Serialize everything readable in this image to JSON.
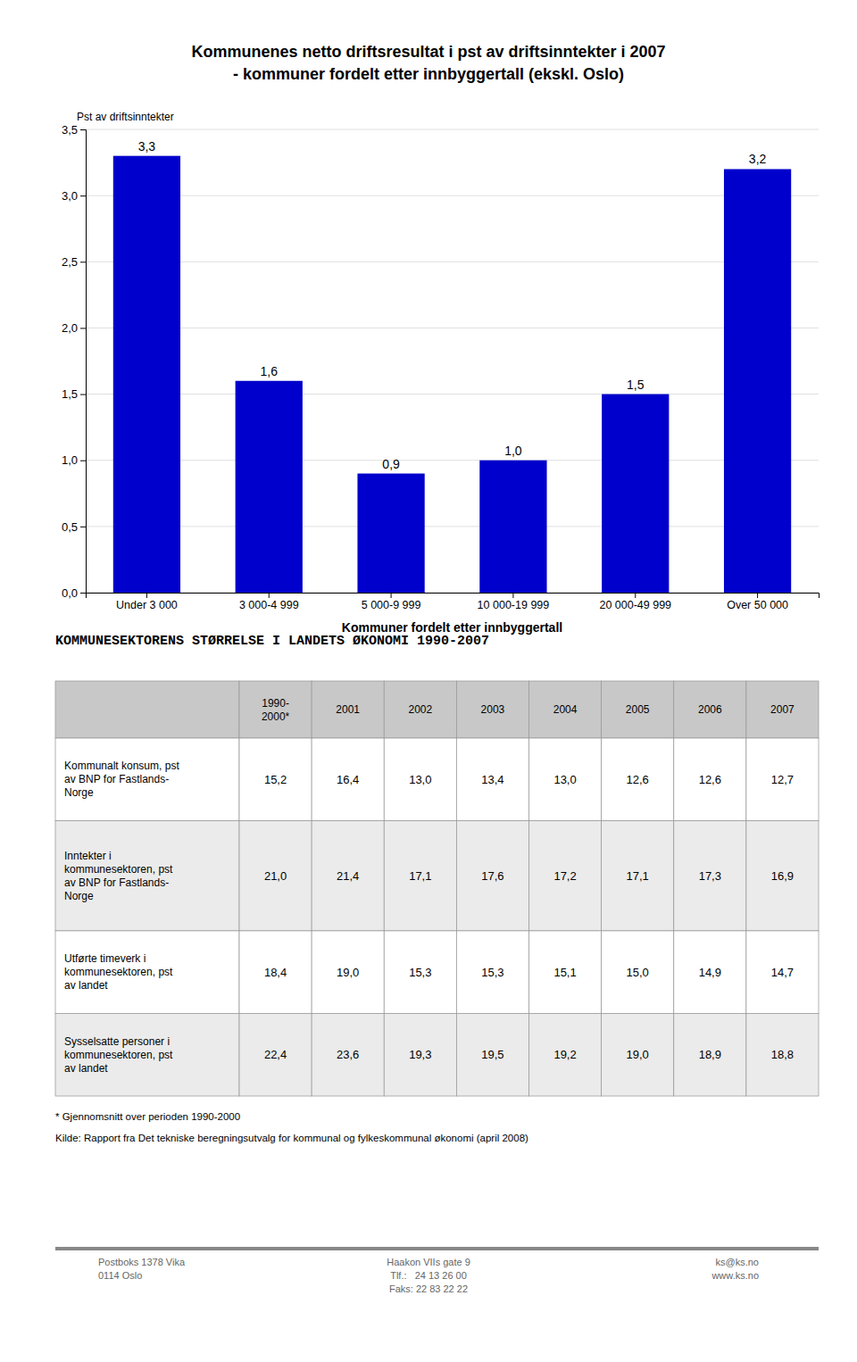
{
  "chart_data": {
    "type": "bar",
    "title": "Kommunenes netto driftsresultat i pst av driftsinntekter i 2007",
    "subtitle": "- kommuner fordelt etter innbyggertall (ekskl. Oslo)",
    "ylabel": "Pst av driftsinntekter",
    "xlabel": "Kommuner fordelt etter innbyggertall",
    "categories": [
      "Under 3 000",
      "3 000-4 999",
      "5 000-9 999",
      "10 000-19 999",
      "20 000-49 999",
      "Over 50 000"
    ],
    "values": [
      3.3,
      1.6,
      0.9,
      1.0,
      1.5,
      3.2
    ],
    "value_labels": [
      "3,3",
      "1,6",
      "0,9",
      "1,0",
      "1,5",
      "3,2"
    ],
    "color": "#0000CC",
    "ylim": [
      0.0,
      3.5
    ],
    "yticks": [
      {
        "value": 0.0,
        "label": "0,0"
      },
      {
        "value": 0.5,
        "label": "0,5"
      },
      {
        "value": 1.0,
        "label": "1,0"
      },
      {
        "value": 1.5,
        "label": "1,5"
      },
      {
        "value": 2.0,
        "label": "2,0"
      },
      {
        "value": 2.5,
        "label": "2,5"
      },
      {
        "value": 3.0,
        "label": "3,0"
      },
      {
        "value": 3.5,
        "label": "3,5"
      }
    ],
    "grid": true,
    "data_labels": true
  },
  "table": {
    "title": "KOMMUNESEKTORENS STØRRELSE I LANDETS ØKONOMI 1990-2007",
    "col_headers": [
      "1990-\n2000*",
      "2001",
      "2002",
      "2003",
      "2004",
      "2005",
      "2006",
      "2007"
    ],
    "row_labels": [
      "Kommunalt konsum, pst\nav BNP for Fastlands-\nNorge",
      "Inntekter i\nkommunesektoren, pst\nav BNP for Fastlands-\nNorge",
      "Utførte timeverk i\nkommunesektoren, pst\nav landet",
      "Sysselsatte personer i\nkommunesektoren, pst\nav landet"
    ],
    "rows": [
      [
        "15,2",
        "16,4",
        "13,0",
        "13,4",
        "13,0",
        "12,6",
        "12,6",
        "12,7"
      ],
      [
        "21,0",
        "21,4",
        "17,1",
        "17,6",
        "17,2",
        "17,1",
        "17,3",
        "16,9"
      ],
      [
        "18,4",
        "19,0",
        "15,3",
        "15,3",
        "15,1",
        "15,0",
        "14,9",
        "14,7"
      ],
      [
        "22,4",
        "23,6",
        "19,3",
        "19,5",
        "19,2",
        "19,0",
        "18,9",
        "18,8"
      ]
    ]
  },
  "footnotes": [
    "* Gjennomsnitt over perioden 1990-2000",
    "Kilde: Rapport fra Det tekniske beregningsutvalg for kommunal og fylkeskommunal økonomi (april 2008)"
  ],
  "footer": {
    "left": [
      "Postboks 1378 Vika",
      "0114 Oslo"
    ],
    "middle": [
      "Haakon VIIs gate 9",
      "Tlf.:   24 13 26 00",
      "Faks: 22 83 22 22"
    ],
    "right": [
      "ks@ks.no",
      "www.ks.no"
    ]
  }
}
